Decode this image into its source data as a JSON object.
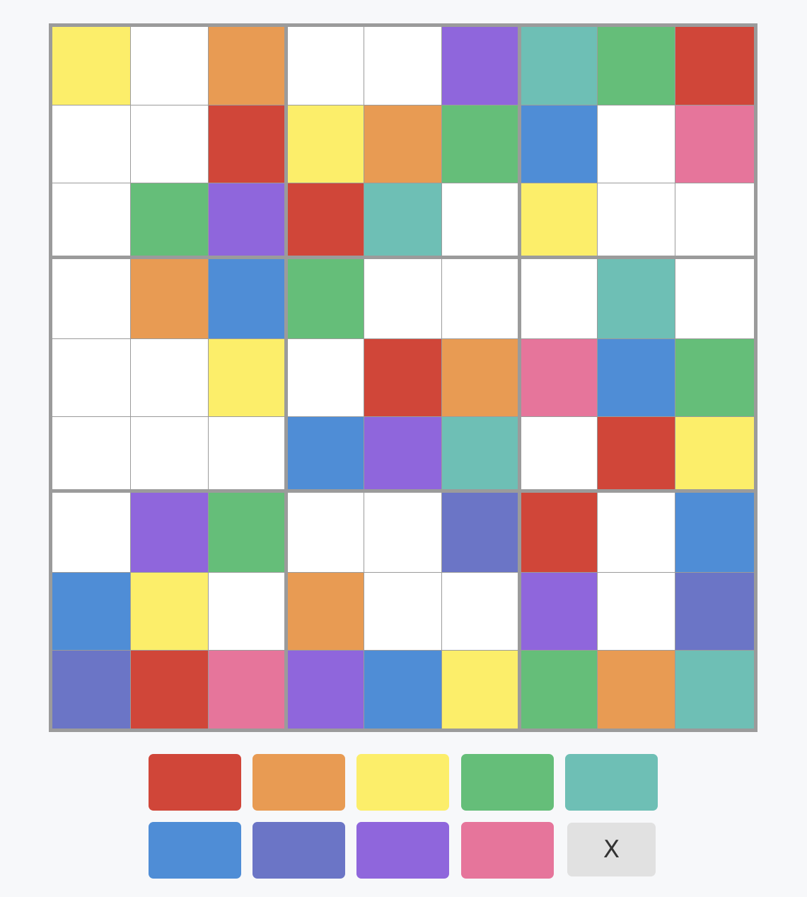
{
  "colors": {
    "R": "#d04639",
    "O": "#e89b53",
    "Y": "#fcee6a",
    "G": "#65be79",
    "T": "#6ebfb5",
    "B": "#4f8dd6",
    "I": "#6b75c6",
    "P": "#8f66dc",
    "K": "#e6759b",
    "_": "#ffffff"
  },
  "grid": [
    [
      "Y",
      "_",
      "O",
      "_",
      "_",
      "P",
      "T",
      "G",
      "R"
    ],
    [
      "_",
      "_",
      "R",
      "Y",
      "O",
      "G",
      "B",
      "_",
      "K"
    ],
    [
      "_",
      "G",
      "P",
      "R",
      "T",
      "_",
      "Y",
      "_",
      "_"
    ],
    [
      "_",
      "O",
      "B",
      "G",
      "_",
      "_",
      "_",
      "T",
      "_"
    ],
    [
      "_",
      "_",
      "Y",
      "_",
      "R",
      "O",
      "K",
      "B",
      "G"
    ],
    [
      "_",
      "_",
      "_",
      "B",
      "P",
      "T",
      "_",
      "R",
      "Y"
    ],
    [
      "_",
      "P",
      "G",
      "_",
      "_",
      "I",
      "R",
      "_",
      "B"
    ],
    [
      "B",
      "Y",
      "_",
      "O",
      "_",
      "_",
      "P",
      "_",
      "I"
    ],
    [
      "I",
      "R",
      "K",
      "P",
      "B",
      "Y",
      "G",
      "O",
      "T"
    ]
  ],
  "palette": [
    {
      "name": "red",
      "color": "#d04639"
    },
    {
      "name": "orange",
      "color": "#e89b53"
    },
    {
      "name": "yellow",
      "color": "#fcee6a"
    },
    {
      "name": "green",
      "color": "#65be79"
    },
    {
      "name": "teal",
      "color": "#6ebfb5"
    },
    {
      "name": "blue",
      "color": "#4f8dd6"
    },
    {
      "name": "indigo",
      "color": "#6b75c6"
    },
    {
      "name": "purple",
      "color": "#8f66dc"
    },
    {
      "name": "pink",
      "color": "#e6759b"
    }
  ],
  "erase_label": "X"
}
